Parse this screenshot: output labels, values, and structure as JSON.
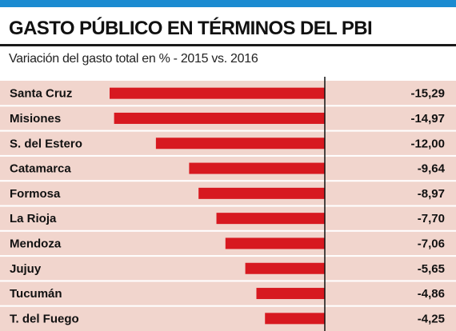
{
  "chart_data": {
    "type": "bar",
    "orientation": "horizontal",
    "title": "GASTO PÚBLICO EN TÉRMINOS DEL PBI",
    "subtitle": "Variación del gasto total en % - 2015 vs. 2016",
    "xlabel": "",
    "ylabel": "",
    "categories": [
      "Santa Cruz",
      "Misiones",
      "S. del Estero",
      "Catamarca",
      "Formosa",
      "La Rioja",
      "Mendoza",
      "Jujuy",
      "Tucumán",
      "T. del Fuego"
    ],
    "values": [
      -15.29,
      -14.97,
      -12.0,
      -9.64,
      -8.97,
      -7.7,
      -7.06,
      -5.65,
      -4.86,
      -4.25
    ],
    "value_labels": [
      "-15,29",
      "-14,97",
      "-12,00",
      "-9,64",
      "-8,97",
      "-7,70",
      "-7,06",
      "-5,65",
      "-4,86",
      "-4,25"
    ],
    "xlim": [
      -15.29,
      0
    ],
    "grid": false,
    "legend": "none"
  },
  "colors": {
    "accent_bar": "#1b8bd1",
    "bar": "#d71920",
    "row_background": "#f1d5cd",
    "text": "#111111"
  }
}
